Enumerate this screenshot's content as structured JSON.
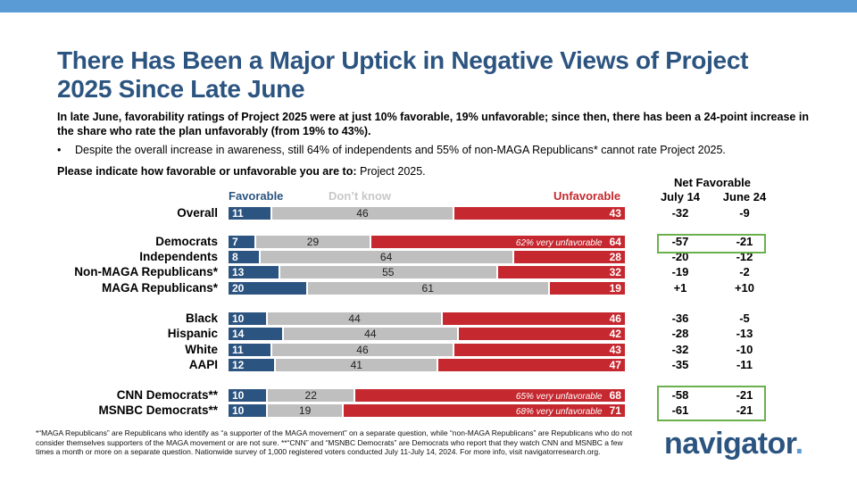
{
  "title": "There Has Been a Major Uptick in Negative Views of Project 2025 Since Late June",
  "subtitle": "In late June, favorability ratings of Project 2025 were at just 10% favorable, 19% unfavorable; since then, there has been a 24-point increase in the share who rate the plan unfavorably (from 19% to 43%).",
  "bullet": "Despite the overall increase in awareness, still 64% of independents and 55% of non-MAGA Republicans* cannot rate Project 2025.",
  "question_label": "Please indicate how favorable or unfavorable you are to:",
  "question_text": "Project 2025.",
  "legend": {
    "favorable": "Favorable",
    "dont_know": "Don’t know",
    "unfavorable": "Unfavorable"
  },
  "net": {
    "title": "Net Favorable",
    "col1": "July 14",
    "col2": "June 24"
  },
  "colors": {
    "favorable": "#2c5480",
    "dont_know": "#bfbfbf",
    "unfavorable": "#c5282f",
    "highlight": "#6ab04c"
  },
  "chart_data": {
    "type": "bar",
    "stacked": true,
    "orientation": "horizontal",
    "categories": [
      "Overall",
      "Democrats",
      "Independents",
      "Non-MAGA Republicans*",
      "MAGA Republicans*",
      "Black",
      "Hispanic",
      "White",
      "AAPI",
      "CNN Democrats**",
      "MSNBC Democrats**"
    ],
    "series": [
      {
        "name": "Favorable",
        "values": [
          11,
          7,
          8,
          13,
          20,
          10,
          14,
          11,
          12,
          10,
          10
        ]
      },
      {
        "name": "Don’t know",
        "values": [
          46,
          29,
          64,
          55,
          61,
          44,
          44,
          46,
          41,
          22,
          19
        ]
      },
      {
        "name": "Unfavorable",
        "values": [
          43,
          64,
          28,
          32,
          19,
          46,
          42,
          43,
          47,
          68,
          71
        ]
      }
    ],
    "annotations": [
      "",
      "62% very unfavorable",
      "",
      "",
      "",
      "",
      "",
      "",
      "",
      "65% very unfavorable",
      "68% very unfavorable"
    ],
    "net_july14": [
      "-32",
      "-57",
      "-20",
      "-19",
      "+1",
      "-36",
      "-28",
      "-32",
      "-35",
      "-58",
      "-61"
    ],
    "net_june24": [
      "-9",
      "-21",
      "-12",
      "-2",
      "+10",
      "-5",
      "-13",
      "-10",
      "-11",
      "-21",
      "-21"
    ],
    "xlim": [
      0,
      100
    ]
  },
  "footnote": "*“MAGA Republicans” are Republicans who identify as “a supporter of the MAGA movement” on a separate question, while “non-MAGA Republicans” are Republicans who do not consider themselves supporters of the MAGA movement or are not sure. **“CNN” and “MSNBC Democrats” are Democrats who report that they watch CNN and MSNBC a few times a month or more on a separate question. Nationwide survey of 1,000 registered voters conducted July 11-July 14, 2024. For more info, visit navigatorresearch.org.",
  "logo": {
    "text": "navigator",
    "dot": "."
  }
}
